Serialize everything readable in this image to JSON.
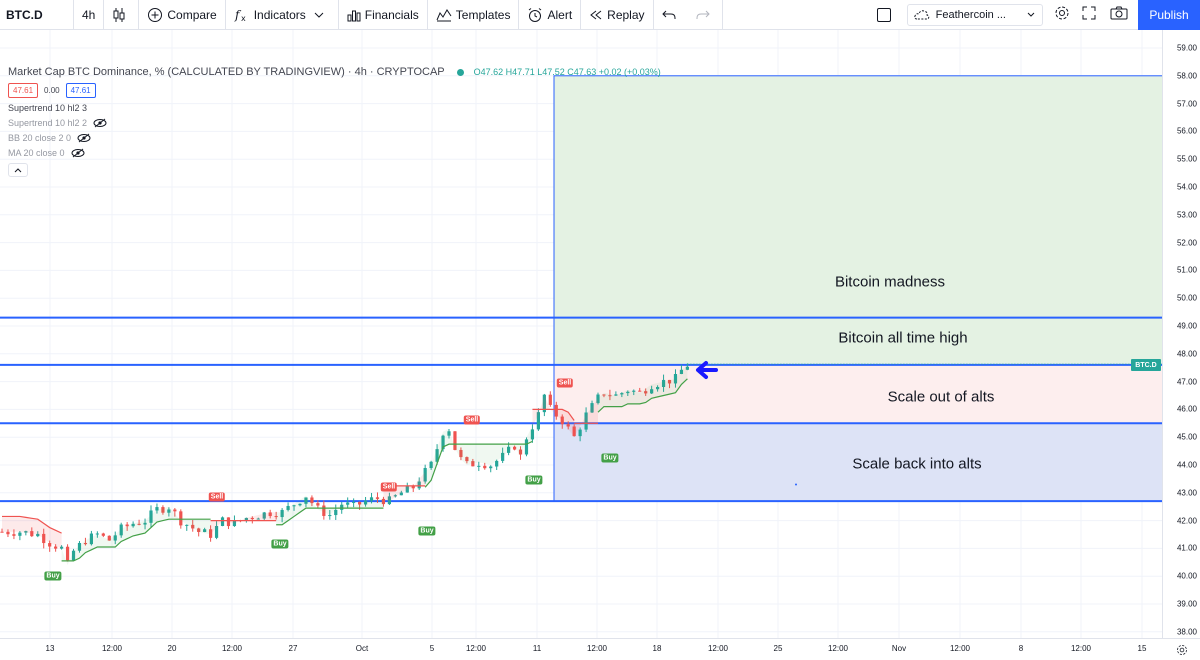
{
  "toolbar": {
    "symbol": "BTC.D",
    "interval": "4h",
    "compare": "Compare",
    "indicators": "Indicators",
    "financials": "Financials",
    "templates": "Templates",
    "alert": "Alert",
    "replay": "Replay",
    "layout_name": "Feathercoin ...",
    "publish": "Publish"
  },
  "legend": {
    "title": "Market Cap BTC Dominance, % (CALCULATED BY TRADINGVIEW) · 4h · CRYPTOCAP",
    "ohlc": "O47.62 H47.71 L47.52 C47.63 +0.02 (+0.03%)",
    "value_left": "47.61",
    "value_mid": "0.00",
    "value_right": "47.61",
    "indicators": [
      {
        "label": "Supertrend 10 hl2 3"
      },
      {
        "label": "Supertrend 10 hl2 2"
      },
      {
        "label": "BB 20 close 2 0"
      },
      {
        "label": "MA 20 close 0"
      }
    ]
  },
  "colors": {
    "up": "#26a69a",
    "down": "#ef5350",
    "level_line": "#2962ff",
    "zone_green": "#e4f2e3",
    "zone_pink": "#fdeeee",
    "zone_blue": "#dde3f6"
  },
  "price_axis": [
    "59.00",
    "58.00",
    "57.00",
    "56.00",
    "55.00",
    "54.00",
    "53.00",
    "52.00",
    "51.00",
    "50.00",
    "49.00",
    "48.00",
    "47.00",
    "46.00",
    "45.00",
    "44.00",
    "43.00",
    "42.00",
    "41.00",
    "40.00",
    "39.00",
    "38.00"
  ],
  "time_axis": [
    "13",
    "12:00",
    "20",
    "12:00",
    "27",
    "Oct",
    "5",
    "12:00",
    "11",
    "12:00",
    "18",
    "12:00",
    "25",
    "12:00",
    "Nov",
    "12:00",
    "8",
    "12:00",
    "15"
  ],
  "last_price_tag": "BTC.D",
  "zones": {
    "madness": "Bitcoin madness",
    "ath": "Bitcoin all time high",
    "scale_out": "Scale out of alts",
    "scale_back": "Scale back into alts"
  },
  "signals": [
    {
      "type": "buy",
      "label": "Buy"
    },
    {
      "type": "sell",
      "label": "Sell"
    },
    {
      "type": "buy",
      "label": "Buy"
    },
    {
      "type": "sell",
      "label": "Sell"
    },
    {
      "type": "buy",
      "label": "Buy"
    },
    {
      "type": "sell",
      "label": "Sell"
    },
    {
      "type": "buy",
      "label": "Buy"
    },
    {
      "type": "sell",
      "label": "Sell"
    },
    {
      "type": "buy",
      "label": "Buy"
    }
  ],
  "price_path": [
    [
      0,
      41.6
    ],
    [
      3,
      41.6
    ],
    [
      6,
      41.5
    ],
    [
      8,
      41.2
    ],
    [
      10,
      41.0
    ],
    [
      11,
      40.4
    ],
    [
      12,
      40.9
    ],
    [
      14,
      41.3
    ],
    [
      16,
      41.5
    ],
    [
      18,
      41.3
    ],
    [
      20,
      41.7
    ],
    [
      22,
      41.9
    ],
    [
      24,
      42.0
    ],
    [
      26,
      42.4
    ],
    [
      28,
      42.5
    ],
    [
      30,
      42.0
    ],
    [
      33,
      41.6
    ],
    [
      35,
      41.5
    ],
    [
      37,
      42.0
    ],
    [
      39,
      41.9
    ],
    [
      41,
      42.1
    ],
    [
      43,
      42.2
    ],
    [
      45,
      42.3
    ],
    [
      47,
      42.3
    ],
    [
      49,
      42.6
    ],
    [
      51,
      42.9
    ],
    [
      53,
      42.4
    ],
    [
      55,
      42.2
    ],
    [
      57,
      42.6
    ],
    [
      59,
      42.5
    ],
    [
      61,
      42.7
    ],
    [
      63,
      42.8
    ],
    [
      65,
      42.7
    ],
    [
      67,
      43.0
    ],
    [
      69,
      43.2
    ],
    [
      70,
      43.5
    ],
    [
      72,
      44.0
    ],
    [
      74,
      45.2
    ],
    [
      75,
      45.3
    ],
    [
      76,
      44.6
    ],
    [
      77,
      44.2
    ],
    [
      78,
      44.0
    ],
    [
      80,
      44.1
    ],
    [
      82,
      44.0
    ],
    [
      84,
      44.3
    ],
    [
      86,
      44.7
    ],
    [
      87,
      44.3
    ],
    [
      88,
      45.0
    ],
    [
      90,
      45.8
    ],
    [
      91,
      46.5
    ],
    [
      92,
      46.0
    ],
    [
      94,
      45.6
    ],
    [
      95,
      45.3
    ],
    [
      96,
      45.0
    ],
    [
      97,
      45.4
    ],
    [
      98,
      45.8
    ],
    [
      99,
      46.1
    ],
    [
      100,
      46.4
    ],
    [
      101,
      46.6
    ],
    [
      103,
      46.5
    ],
    [
      105,
      46.7
    ],
    [
      107,
      46.6
    ],
    [
      109,
      46.9
    ],
    [
      111,
      47.0
    ],
    [
      113,
      47.1
    ],
    [
      114,
      47.4
    ],
    [
      115,
      47.6
    ]
  ]
}
